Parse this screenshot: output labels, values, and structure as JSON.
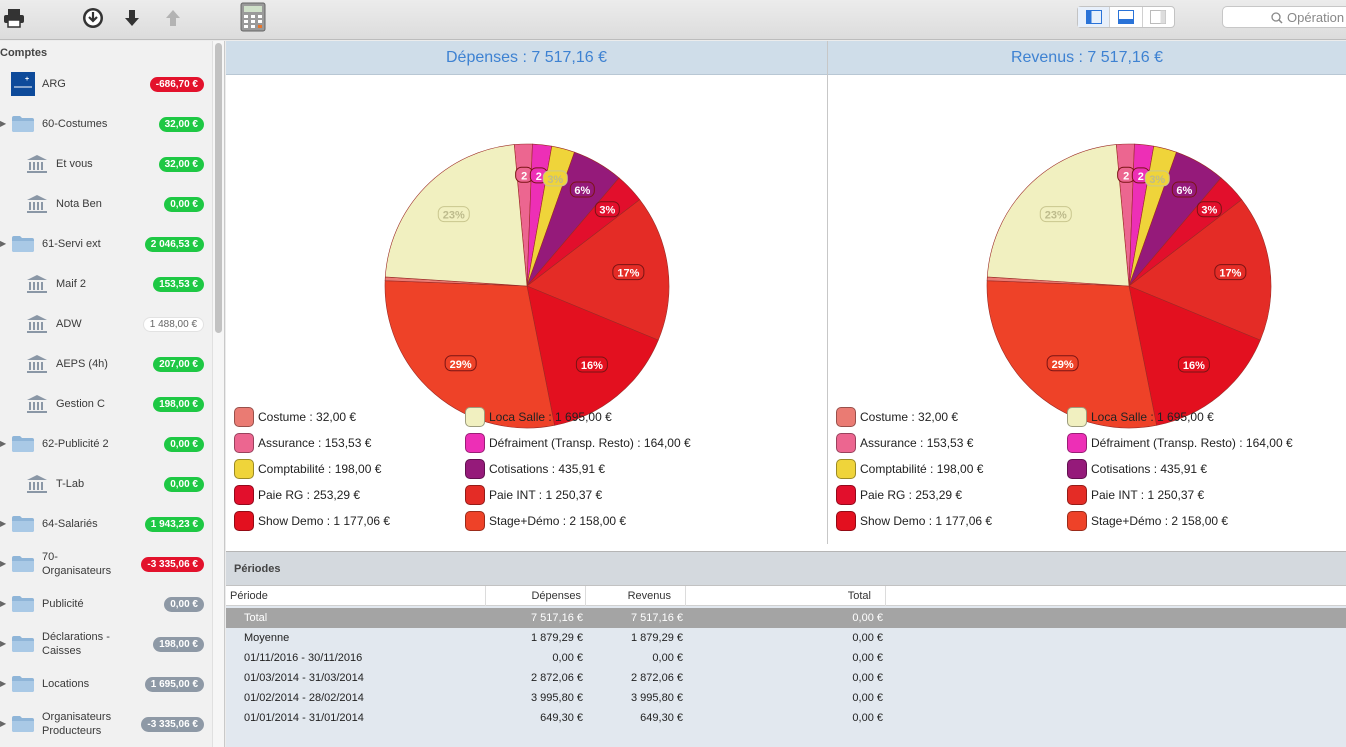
{
  "toolbar": {
    "icons": [
      "printer-icon",
      "download-circle-icon",
      "arrow-down-icon",
      "arrow-up-icon",
      "calculator-icon"
    ],
    "search_placeholder": "Opération"
  },
  "sidebar": {
    "header": "Comptes",
    "accounts": [
      {
        "label": "ARG",
        "amount": "-686,70 €",
        "badge": "red",
        "icon": "bank-logo-icon",
        "level": 0,
        "expand": false
      },
      {
        "label": "60-Costumes",
        "amount": "32,00 €",
        "badge": "green",
        "icon": "folder-icon",
        "level": 0,
        "expand": true
      },
      {
        "label": "Et vous",
        "amount": "32,00 €",
        "badge": "green",
        "icon": "bank-building-icon",
        "level": 1,
        "expand": false
      },
      {
        "label": "Nota Ben",
        "amount": "0,00 €",
        "badge": "green",
        "icon": "bank-building-icon",
        "level": 1,
        "expand": false
      },
      {
        "label": "61-Servi ext",
        "amount": "2 046,53 €",
        "badge": "green",
        "icon": "folder-icon",
        "level": 0,
        "expand": true
      },
      {
        "label": "Maif 2",
        "amount": "153,53 €",
        "badge": "green",
        "icon": "bank-building-icon",
        "level": 1,
        "expand": false
      },
      {
        "label": "ADW",
        "amount": "1 488,00 €",
        "badge": "white",
        "icon": "bank-building-icon",
        "level": 1,
        "expand": false
      },
      {
        "label": "AEPS (4h)",
        "amount": "207,00 €",
        "badge": "green",
        "icon": "bank-building-icon",
        "level": 1,
        "expand": false
      },
      {
        "label": "Gestion C",
        "amount": "198,00 €",
        "badge": "green",
        "icon": "bank-building-icon",
        "level": 1,
        "expand": false
      },
      {
        "label": "62-Publicité 2",
        "amount": "0,00 €",
        "badge": "green",
        "icon": "folder-icon",
        "level": 0,
        "expand": true
      },
      {
        "label": "T-Lab",
        "amount": "0,00 €",
        "badge": "green",
        "icon": "bank-building-icon",
        "level": 1,
        "expand": false
      },
      {
        "label": "64-Salariés",
        "amount": "1 943,23 €",
        "badge": "green",
        "icon": "folder-icon",
        "level": 0,
        "expand": true
      },
      {
        "label": "70-\nOrganisateurs",
        "amount": "-3 335,06 €",
        "badge": "red",
        "icon": "folder-icon",
        "level": 0,
        "expand": true
      },
      {
        "label": "Publicité",
        "amount": "0,00 €",
        "badge": "gray",
        "icon": "folder-icon",
        "level": 0,
        "expand": true
      },
      {
        "label": "Déclarations -\nCaisses",
        "amount": "198,00 €",
        "badge": "gray",
        "icon": "folder-icon",
        "level": 0,
        "expand": true
      },
      {
        "label": "Locations",
        "amount": "1 695,00 €",
        "badge": "gray",
        "icon": "folder-icon",
        "level": 0,
        "expand": true
      },
      {
        "label": "Organisateurs\nProducteurs",
        "amount": "-3 335,06 €",
        "badge": "gray",
        "icon": "folder-icon",
        "level": 0,
        "expand": true
      }
    ]
  },
  "charts": {
    "depenses_title": "Dépenses : 7 517,16 €",
    "revenus_title": "Revenus : 7 517,16 €"
  },
  "chart_data": [
    {
      "type": "pie",
      "title": "Dépenses : 7 517,16 €",
      "slices": [
        {
          "label": "Costume : 32,00 €",
          "value": 32.0,
          "color": "#ea7b73",
          "pct": ""
        },
        {
          "label": "Loca Salle : 1 695,00 €",
          "value": 1695.0,
          "color": "#f1f0c0",
          "pct": "23%"
        },
        {
          "label": "Assurance : 153,53 €",
          "value": 153.53,
          "color": "#ec6690",
          "pct": "2"
        },
        {
          "label": "Défraiment (Transp. Resto) : 164,00 €",
          "value": 164.0,
          "color": "#ed2fb6",
          "pct": "2"
        },
        {
          "label": "Comptabilité : 198,00 €",
          "value": 198.0,
          "color": "#efd43a",
          "pct": "3%"
        },
        {
          "label": "Cotisations : 435,91 €",
          "value": 435.91,
          "color": "#951a7a",
          "pct": "6%"
        },
        {
          "label": "Paie RG : 253,29 €",
          "value": 253.29,
          "color": "#e20f2c",
          "pct": "3%"
        },
        {
          "label": "Paie INT : 1 250,37 €",
          "value": 1250.37,
          "color": "#e42c26",
          "pct": "17%"
        },
        {
          "label": "Show Demo : 1 177,06 €",
          "value": 1177.06,
          "color": "#e3101f",
          "pct": "16%"
        },
        {
          "label": "Stage+Démo : 2 158,00 €",
          "value": 2158.0,
          "color": "#ee4228",
          "pct": "29%"
        }
      ]
    },
    {
      "type": "pie",
      "title": "Revenus : 7 517,16 €",
      "slices": [
        {
          "label": "Costume : 32,00 €",
          "value": 32.0,
          "color": "#ea7b73",
          "pct": ""
        },
        {
          "label": "Loca Salle : 1 695,00 €",
          "value": 1695.0,
          "color": "#f1f0c0",
          "pct": "23%"
        },
        {
          "label": "Assurance : 153,53 €",
          "value": 153.53,
          "color": "#ec6690",
          "pct": "2"
        },
        {
          "label": "Défraiment (Transp. Resto) : 164,00 €",
          "value": 164.0,
          "color": "#ed2fb6",
          "pct": "2"
        },
        {
          "label": "Comptabilité : 198,00 €",
          "value": 198.0,
          "color": "#efd43a",
          "pct": "3%"
        },
        {
          "label": "Cotisations : 435,91 €",
          "value": 435.91,
          "color": "#951a7a",
          "pct": "6%"
        },
        {
          "label": "Paie RG : 253,29 €",
          "value": 253.29,
          "color": "#e20f2c",
          "pct": "3%"
        },
        {
          "label": "Paie INT : 1 250,37 €",
          "value": 1250.37,
          "color": "#e42c26",
          "pct": "17%"
        },
        {
          "label": "Show Demo : 1 177,06 €",
          "value": 1177.06,
          "color": "#e3101f",
          "pct": "16%"
        },
        {
          "label": "Stage+Démo : 2 158,00 €",
          "value": 2158.0,
          "color": "#ee4228",
          "pct": "29%"
        }
      ]
    }
  ],
  "periods": {
    "title": "Périodes",
    "headers": [
      "Période",
      "Dépenses",
      "Revenus",
      "Total"
    ],
    "rows": [
      [
        "Total",
        "7 517,16 €",
        "7 517,16 €",
        "0,00 €"
      ],
      [
        "Moyenne",
        "1 879,29 €",
        "1 879,29 €",
        "0,00 €"
      ],
      [
        "01/11/2016 - 30/11/2016",
        "0,00 €",
        "0,00 €",
        "0,00 €"
      ],
      [
        "01/03/2014 - 31/03/2014",
        "2 872,06 €",
        "2 872,06 €",
        "0,00 €"
      ],
      [
        "01/02/2014 - 28/02/2014",
        "3 995,80 €",
        "3 995,80 €",
        "0,00 €"
      ],
      [
        "01/01/2014 - 31/01/2014",
        "649,30 €",
        "649,30 €",
        "0,00 €"
      ]
    ]
  }
}
